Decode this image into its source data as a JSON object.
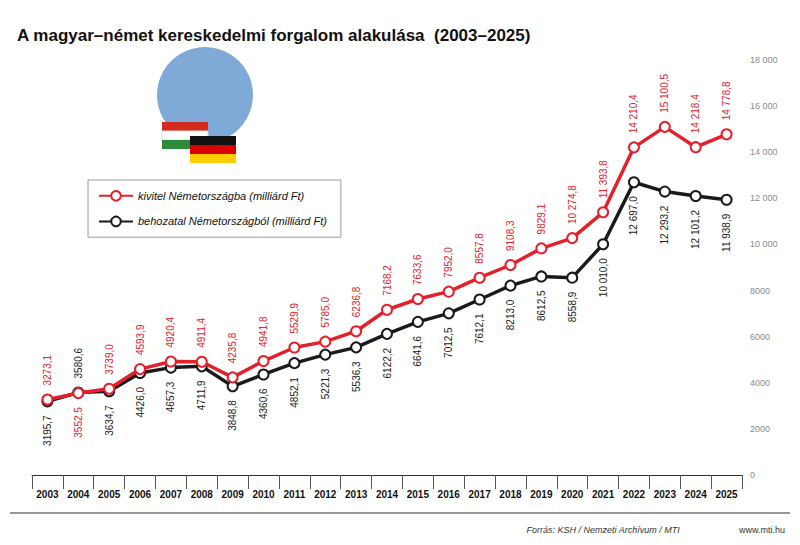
{
  "chart_data": {
    "type": "line",
    "title": "A magyar–német kereskedelmi forgalom alakulása  (2003–2025)",
    "source": "Forrás: KSH / Nemzeti Archívum / MTI",
    "website": "www.mti.hu",
    "categories": [
      "2003",
      "2004",
      "2005",
      "2006",
      "2007",
      "2008",
      "2009",
      "2010",
      "2011",
      "2012",
      "2013",
      "2014",
      "2015",
      "2016",
      "2017",
      "2018",
      "2019",
      "2020",
      "2021",
      "2022",
      "2023",
      "2024",
      "2025"
    ],
    "series": [
      {
        "name": "kivitel Németországba (milliárd Ft)",
        "color": "#e3202b",
        "marker": "circle",
        "values": [
          3273.1,
          3552.5,
          3739.0,
          4593.9,
          4920.4,
          4911.4,
          4235.8,
          4941.8,
          5529.9,
          5785.0,
          6236.8,
          7168.2,
          7633.6,
          7952.0,
          8557.8,
          9108.3,
          9829.1,
          10274.8,
          11393.8,
          14210.4,
          15100.5,
          14218.4,
          14778.8
        ],
        "value_labels": [
          "3273,1",
          "3552,5",
          "3739,0",
          "4593,9",
          "4920,4",
          "4911,4",
          "4235,8",
          "4941,8",
          "5529,9",
          "5785,0",
          "6236,8",
          "7168,2",
          "7633,6",
          "7952,0",
          "8557,8",
          "9108,3",
          "9829,1",
          "10 274,8",
          "11 393,8",
          "14 210,4",
          "15 100,5",
          "14 218,4",
          "14 778,8"
        ]
      },
      {
        "name": "behozatal Németországból (milliárd Ft)",
        "color": "#1a1a1a",
        "marker": "circle",
        "values": [
          3195.7,
          3580.6,
          3634.7,
          4426.0,
          4657.3,
          4711.9,
          3848.8,
          4360.6,
          4852.1,
          5221.3,
          5536.3,
          6122.2,
          6641.6,
          7012.5,
          7612.1,
          8213.0,
          8612.5,
          8558.9,
          10010.0,
          12697.0,
          12293.2,
          12101.2,
          11938.9
        ],
        "value_labels": [
          "3195,7",
          "3580,6",
          "3634,7",
          "4426,0",
          "4657,3",
          "4711,9",
          "3848,8",
          "4360,6",
          "4852,1",
          "5221,3",
          "5536,3",
          "6122,2",
          "6641,6",
          "7012,5",
          "7612,1",
          "8213,0",
          "8612,5",
          "8558,9",
          "10 010,0",
          "12 697,0",
          "12 293,2",
          "12 101,2",
          "11 938,9"
        ]
      }
    ],
    "ylim": [
      0,
      18000
    ],
    "yticks": [
      0,
      2000,
      4000,
      6000,
      8000,
      {
        "value": 10000,
        "label": "10 000"
      },
      {
        "value": 12000,
        "label": "12 000"
      },
      {
        "value": 14000,
        "label": "14 000"
      },
      {
        "value": 16000,
        "label": "16 000"
      },
      {
        "value": 18000,
        "label": "18 000"
      }
    ],
    "grid": false,
    "legend": "upper left",
    "data_labels": true
  }
}
